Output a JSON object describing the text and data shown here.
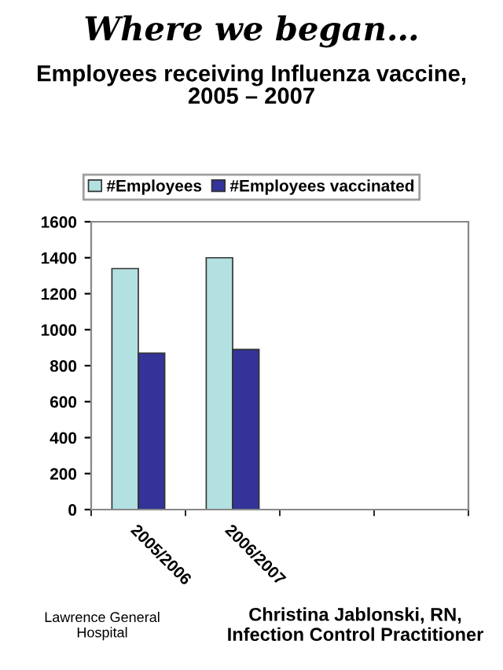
{
  "chart_data": {
    "type": "bar",
    "title": "Where we began…",
    "subtitle": "Employees receiving Influenza vaccine,\n2005 – 2007",
    "categories": [
      "2005/2006",
      "2006/2007",
      null,
      null
    ],
    "series": [
      {
        "name": "#Employees",
        "color": "#b3e0e0",
        "values": [
          1340,
          1400,
          null,
          null
        ]
      },
      {
        "name": "#Employees vaccinated",
        "color": "#333399",
        "values": [
          870,
          890,
          null,
          null
        ]
      }
    ],
    "ylim": [
      0,
      1600
    ],
    "yticks": [
      0,
      200,
      400,
      600,
      800,
      1000,
      1200,
      1400,
      1600
    ],
    "grid": false,
    "legend": "top",
    "annotations": [
      "Lawrence General\nHospital",
      "Christina Jablonski, RN,\nInfection Control Practitioner"
    ]
  }
}
